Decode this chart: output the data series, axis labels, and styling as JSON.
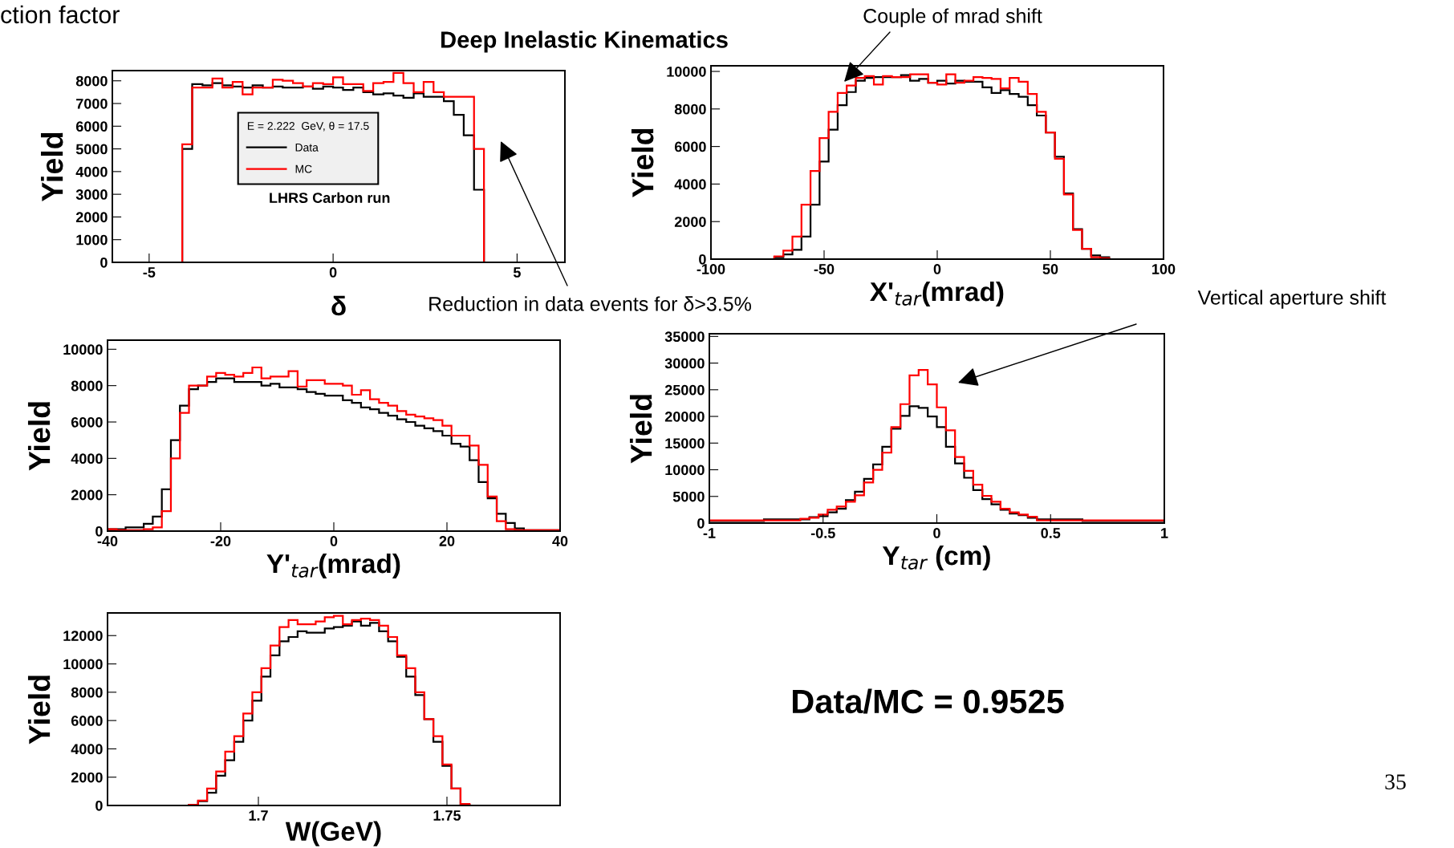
{
  "chart_data": [
    {
      "type": "histogram",
      "title": "Deep Inelastic Kinematics",
      "xlabel": "δ",
      "ylabel": "Yield",
      "legend": "center",
      "legend_title": "E = 2.222  GeV, θ = 17.5",
      "bins": [
        -6,
        -4.1,
        -3.83,
        -3.55,
        -3.28,
        -3.01,
        -2.73,
        -2.46,
        -2.19,
        -1.91,
        -1.64,
        -1.37,
        -1.09,
        -0.82,
        -0.55,
        -0.27,
        0,
        0.27,
        0.55,
        0.82,
        1.09,
        1.37,
        1.64,
        1.91,
        2.19,
        2.46,
        2.73,
        3.01,
        3.28,
        3.55,
        3.83,
        4.1,
        6.3
      ],
      "series": [
        {
          "name": "Data",
          "color": "#000000",
          "values": [
            0,
            5000,
            7850,
            7800,
            7900,
            7800,
            7750,
            7700,
            7800,
            7700,
            7750,
            7700,
            7700,
            7750,
            7650,
            7750,
            7700,
            7600,
            7700,
            7500,
            7400,
            7450,
            7350,
            7250,
            7450,
            7300,
            7300,
            7100,
            6500,
            5600,
            3200,
            0
          ]
        },
        {
          "name": "MC",
          "color": "#ff0000",
          "values": [
            0,
            5200,
            7700,
            7700,
            8100,
            7700,
            7950,
            7400,
            7700,
            7700,
            8050,
            8000,
            7900,
            7750,
            7900,
            7850,
            8150,
            7850,
            7850,
            7550,
            7900,
            7950,
            8350,
            7900,
            7500,
            7950,
            7500,
            7300,
            7300,
            7300,
            5000,
            0
          ]
        }
      ],
      "xlim": [
        -6,
        6.3
      ],
      "ylim": [
        0,
        8450
      ],
      "xticks": [
        -5,
        0,
        5
      ],
      "yticks": [
        0,
        1000,
        2000,
        3000,
        4000,
        5000,
        6000,
        7000,
        8000
      ],
      "annotations": [
        "ction factor",
        "LHRS Carbon run",
        "Reduction in data events for δ>3.5%"
      ]
    },
    {
      "type": "histogram",
      "xlabel": "X'$_{tar}$(mrad)",
      "ylabel": "Yield",
      "bins": [
        -100,
        -96,
        -92,
        -88,
        -84,
        -80,
        -76,
        -72,
        -68,
        -64,
        -60,
        -56,
        -52,
        -48,
        -44,
        -40,
        -36,
        -32,
        -28,
        -24,
        -20,
        -16,
        -12,
        -8,
        -4,
        0,
        4,
        8,
        12,
        16,
        20,
        24,
        28,
        32,
        36,
        40,
        44,
        48,
        52,
        56,
        60,
        64,
        68,
        72,
        76,
        80,
        84,
        88,
        92,
        96,
        100
      ],
      "series": [
        {
          "color": "#000000",
          "values": [
            0,
            0,
            0,
            0,
            0,
            0,
            0,
            100,
            250,
            500,
            1200,
            2900,
            5200,
            6900,
            8200,
            8900,
            9500,
            9650,
            9700,
            9700,
            9700,
            9800,
            9500,
            9600,
            9400,
            9500,
            9350,
            9500,
            9450,
            9450,
            9150,
            8850,
            9000,
            8800,
            8650,
            8200,
            7650,
            6750,
            5450,
            3500,
            1600,
            550,
            200,
            100,
            0,
            0,
            0,
            0,
            0,
            0
          ]
        },
        {
          "color": "#ff0000",
          "values": [
            0,
            0,
            0,
            0,
            0,
            0,
            0,
            150,
            450,
            1200,
            2900,
            4700,
            6450,
            7850,
            8850,
            9250,
            9650,
            9750,
            9300,
            9750,
            9700,
            9700,
            9850,
            9850,
            9400,
            9300,
            9850,
            9400,
            9500,
            9700,
            9650,
            9600,
            9100,
            9650,
            9450,
            8800,
            7850,
            6750,
            5350,
            3450,
            1550,
            550,
            100,
            50,
            0,
            0,
            0,
            0,
            0,
            0
          ]
        }
      ],
      "xlim": [
        -100,
        100
      ],
      "ylim": [
        0,
        10300
      ],
      "xticks": [
        -100,
        -50,
        0,
        50,
        100
      ],
      "yticks": [
        0,
        2000,
        4000,
        6000,
        8000,
        10000
      ],
      "annotations": [
        "Couple of mrad shift"
      ]
    },
    {
      "type": "histogram",
      "xlabel": "Y'$_{tar}$(mrad)",
      "ylabel": "Yield",
      "bins": [
        -40,
        -38.4,
        -36.8,
        -35.2,
        -33.6,
        -32,
        -30.4,
        -28.8,
        -27.2,
        -25.6,
        -24,
        -22.4,
        -20.8,
        -19.2,
        -17.6,
        -16,
        -14.4,
        -12.8,
        -11.2,
        -9.6,
        -8,
        -6.4,
        -4.8,
        -3.2,
        -1.6,
        0,
        1.6,
        3.2,
        4.8,
        6.4,
        8,
        9.6,
        11.2,
        12.8,
        14.4,
        16,
        17.6,
        19.2,
        20.8,
        22.4,
        24,
        25.6,
        27.2,
        28.8,
        30.4,
        32,
        33.6,
        35.2,
        36.8,
        38.4,
        40
      ],
      "series": [
        {
          "color": "#000000",
          "values": [
            100,
            100,
            200,
            200,
            400,
            800,
            2300,
            5000,
            6900,
            7800,
            8000,
            8200,
            8400,
            8400,
            8200,
            8200,
            8200,
            8000,
            8100,
            7900,
            7900,
            7800,
            7650,
            7550,
            7450,
            7450,
            7200,
            7050,
            6800,
            6700,
            6500,
            6350,
            6150,
            6000,
            5800,
            5650,
            5500,
            5250,
            4800,
            4650,
            3900,
            2700,
            1800,
            950,
            450,
            150,
            50,
            50,
            50,
            50
          ]
        },
        {
          "color": "#ff0000",
          "values": [
            100,
            50,
            50,
            50,
            100,
            200,
            1100,
            4000,
            6500,
            8000,
            8000,
            8500,
            8700,
            8600,
            8500,
            8700,
            9000,
            8400,
            8500,
            8500,
            8800,
            7950,
            8300,
            8300,
            8100,
            8100,
            8000,
            7500,
            7750,
            7250,
            7050,
            6900,
            6600,
            6400,
            6300,
            6200,
            6100,
            5800,
            5250,
            5250,
            4700,
            3650,
            1900,
            550,
            100,
            50,
            50,
            50,
            50,
            50
          ]
        }
      ],
      "xlim": [
        -40,
        40
      ],
      "ylim": [
        0,
        10500
      ],
      "xticks": [
        -40,
        -20,
        0,
        20,
        40
      ],
      "yticks": [
        0,
        2000,
        4000,
        6000,
        8000,
        10000
      ]
    },
    {
      "type": "histogram",
      "xlabel": "Y$_{tar}$ (cm)",
      "ylabel": "Yield",
      "bins": [
        -1,
        -0.96,
        -0.92,
        -0.88,
        -0.84,
        -0.8,
        -0.76,
        -0.72,
        -0.68,
        -0.64,
        -0.6,
        -0.56,
        -0.52,
        -0.48,
        -0.44,
        -0.4,
        -0.36,
        -0.32,
        -0.28,
        -0.24,
        -0.2,
        -0.16,
        -0.12,
        -0.08,
        -0.04,
        0,
        0.04,
        0.08,
        0.12,
        0.16,
        0.2,
        0.24,
        0.28,
        0.32,
        0.36,
        0.4,
        0.44,
        0.48,
        0.52,
        0.56,
        0.6,
        0.64,
        0.68,
        0.72,
        0.76,
        0.8,
        0.84,
        0.88,
        0.92,
        0.96,
        1
      ],
      "series": [
        {
          "color": "#000000",
          "values": [
            400,
            400,
            400,
            400,
            400,
            400,
            700,
            700,
            700,
            700,
            700,
            1100,
            1300,
            2000,
            2700,
            4300,
            5900,
            8300,
            11000,
            14300,
            17700,
            20100,
            21900,
            21600,
            20000,
            18000,
            14300,
            11200,
            8500,
            6200,
            4500,
            3500,
            2500,
            1800,
            1500,
            1000,
            700,
            700,
            700,
            700,
            700,
            400,
            400,
            400,
            400,
            400,
            400,
            400,
            400,
            400
          ]
        },
        {
          "color": "#ff0000",
          "values": [
            500,
            500,
            500,
            500,
            500,
            500,
            500,
            500,
            500,
            500,
            800,
            1000,
            1600,
            2500,
            3100,
            4000,
            5200,
            7600,
            10000,
            13200,
            18000,
            22300,
            27700,
            28700,
            26000,
            21700,
            17400,
            12400,
            9800,
            7200,
            5100,
            4000,
            2700,
            2000,
            1600,
            1200,
            500,
            500,
            500,
            500,
            500,
            500,
            500,
            500,
            500,
            500,
            500,
            500,
            500,
            500
          ]
        }
      ],
      "xlim": [
        -1,
        1
      ],
      "ylim": [
        0,
        35500
      ],
      "xticks": [
        -1,
        -0.5,
        0,
        0.5,
        1
      ],
      "yticks": [
        0,
        5000,
        10000,
        15000,
        20000,
        25000,
        30000,
        35000
      ],
      "annotations": [
        "Vertical aperture shift"
      ]
    },
    {
      "type": "histogram",
      "xlabel": "W(GeV)",
      "ylabel": "Yield",
      "bins": [
        1.66,
        1.6624,
        1.6648,
        1.6672,
        1.6696,
        1.672,
        1.6744,
        1.6768,
        1.6792,
        1.6816,
        1.684,
        1.6864,
        1.6888,
        1.6912,
        1.6936,
        1.696,
        1.6984,
        1.7008,
        1.7032,
        1.7056,
        1.708,
        1.7104,
        1.7128,
        1.7152,
        1.7176,
        1.72,
        1.7224,
        1.7248,
        1.7272,
        1.7296,
        1.732,
        1.7344,
        1.7368,
        1.7392,
        1.7416,
        1.744,
        1.7464,
        1.7488,
        1.7512,
        1.7536,
        1.756,
        1.7584,
        1.7608,
        1.7632,
        1.7656,
        1.768,
        1.7704,
        1.7728,
        1.7752,
        1.7776,
        1.78
      ],
      "series": [
        {
          "color": "#000000",
          "values": [
            0,
            0,
            0,
            0,
            0,
            0,
            0,
            0,
            0,
            50,
            300,
            900,
            2100,
            3200,
            4500,
            6000,
            7400,
            9100,
            10600,
            11600,
            11900,
            12300,
            12200,
            12200,
            12500,
            12600,
            12700,
            13000,
            12700,
            12900,
            12300,
            11600,
            10500,
            9100,
            7800,
            6100,
            4500,
            2800,
            1200,
            50,
            0,
            0,
            0,
            0,
            0,
            0,
            0,
            0,
            0,
            0
          ]
        },
        {
          "color": "#ff0000",
          "values": [
            0,
            0,
            0,
            0,
            0,
            0,
            0,
            0,
            0,
            50,
            350,
            1200,
            2400,
            3800,
            4900,
            6500,
            8000,
            9700,
            11300,
            12600,
            13100,
            12800,
            12800,
            13000,
            13300,
            13400,
            12800,
            13100,
            13200,
            13100,
            12700,
            11900,
            10600,
            9700,
            8000,
            6100,
            4900,
            2900,
            1200,
            100,
            0,
            0,
            0,
            0,
            0,
            0,
            0,
            0,
            0,
            0
          ]
        }
      ],
      "xlim": [
        1.66,
        1.78
      ],
      "ylim": [
        0,
        13600
      ],
      "xticks": [
        1.7,
        1.75
      ],
      "yticks": [
        0,
        2000,
        4000,
        6000,
        8000,
        10000,
        12000
      ],
      "annotations": [
        "Data/MC = 0.9525",
        "35"
      ]
    }
  ]
}
